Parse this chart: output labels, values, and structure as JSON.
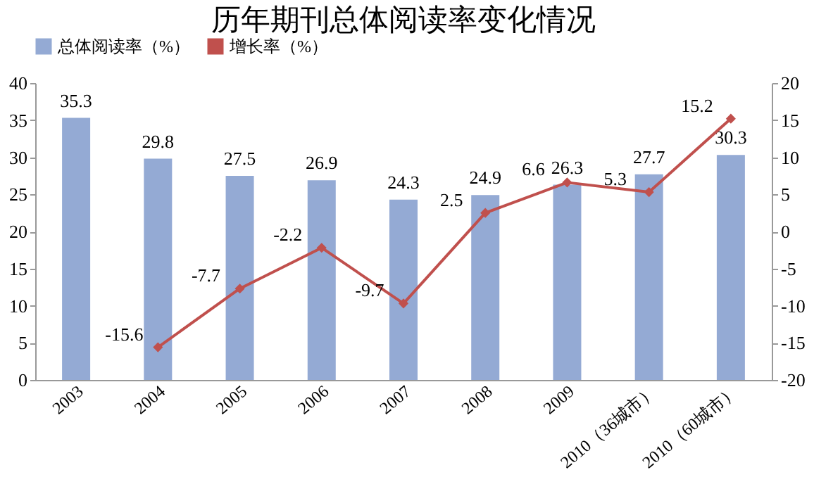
{
  "chart_data": {
    "type": "bar",
    "title": "历年期刊总体阅读率变化情况",
    "categories": [
      "2003",
      "2004",
      "2005",
      "2006",
      "2007",
      "2008",
      "2009",
      "2010（36城市）",
      "2010（60城市）"
    ],
    "series": [
      {
        "name": "总体阅读率（%）",
        "color": "#94aad4",
        "values": [
          35.3,
          29.8,
          27.5,
          26.9,
          24.3,
          24.9,
          26.3,
          27.7,
          30.3
        ]
      },
      {
        "name": "增长率（%）",
        "type": "line",
        "axis": "y2",
        "color": "#c0504d",
        "values": [
          null,
          -15.6,
          -7.7,
          -2.2,
          -9.7,
          2.5,
          6.6,
          5.3,
          15.2
        ]
      }
    ],
    "ylim": [
      0,
      40
    ],
    "yticks": [
      0,
      5,
      10,
      15,
      20,
      25,
      30,
      35,
      40
    ],
    "y2lim": [
      -20,
      20
    ],
    "y2ticks": [
      -20,
      -15,
      -10,
      -5,
      0,
      5,
      10,
      15,
      20
    ],
    "data_labels": true,
    "legend": "top",
    "grid": false,
    "marker": "diamond",
    "line_style": "solid"
  }
}
